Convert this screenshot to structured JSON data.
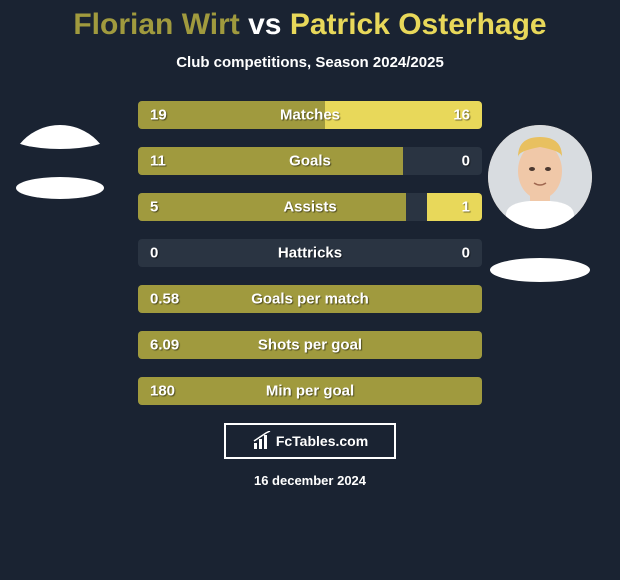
{
  "title": {
    "player1": "Florian Wirt",
    "vs": "vs",
    "player2": "Patrick Osterhage"
  },
  "subtitle": "Club competitions, Season 2024/2025",
  "colors": {
    "player1": "#a09a3e",
    "player2": "#e8d85a",
    "background": "#1a2332",
    "bar_bg": "#2a3442",
    "text": "#ffffff"
  },
  "stats": [
    {
      "label": "Matches",
      "val1": "19",
      "val2": "16",
      "pct1": 54.3,
      "pct2": 45.7
    },
    {
      "label": "Goals",
      "val1": "11",
      "val2": "0",
      "pct1": 77,
      "pct2": 0
    },
    {
      "label": "Assists",
      "val1": "5",
      "val2": "1",
      "pct1": 78,
      "pct2": 16
    },
    {
      "label": "Hattricks",
      "val1": "0",
      "val2": "0",
      "pct1": 0,
      "pct2": 0
    },
    {
      "label": "Goals per match",
      "val1": "0.58",
      "val2": "",
      "pct1": 100,
      "pct2": 0
    },
    {
      "label": "Shots per goal",
      "val1": "6.09",
      "val2": "",
      "pct1": 100,
      "pct2": 0
    },
    {
      "label": "Min per goal",
      "val1": "180",
      "val2": "",
      "pct1": 100,
      "pct2": 0
    }
  ],
  "logo": {
    "text": "FcTables.com"
  },
  "date": "16 december 2024",
  "avatars": {
    "left": "florian-wirt",
    "right": "patrick-osterhage"
  }
}
